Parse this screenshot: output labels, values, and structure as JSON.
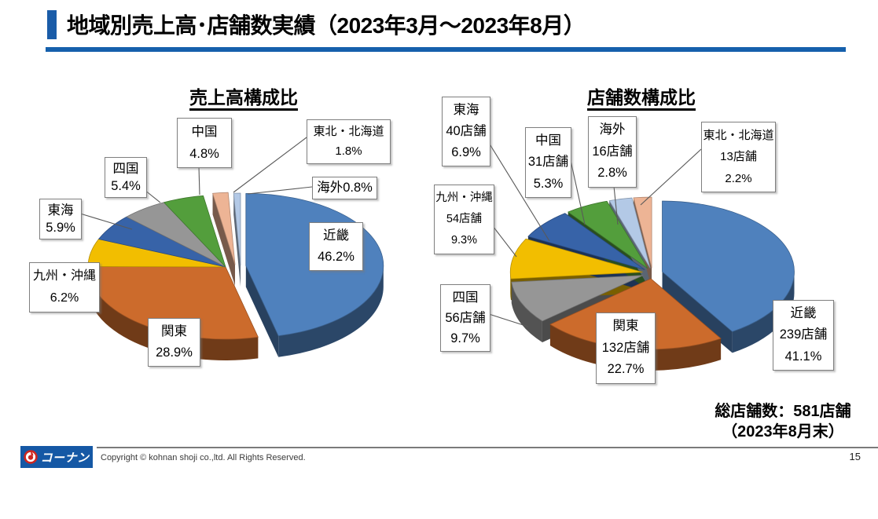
{
  "page": {
    "title": "地域別売上高･店舗数実績（2023年3月～2023年8月）",
    "total_note_line1": "総店舗数：581店舗",
    "total_note_line2": "（2023年8月末）",
    "footer_copyright": "Copyright © kohnan shoji co.,ltd. All Rights Reserved.",
    "logo_text": "コーナン",
    "page_number": "15",
    "accent_blue": "#1560AC",
    "logo_blue": "#1558A5",
    "logo_red": "#CE2620"
  },
  "chart_data": [
    {
      "type": "pie",
      "title": "売上高構成比",
      "value_kind": "percent_of_sales",
      "legend_position": "callouts",
      "slices": [
        {
          "id": "kinki",
          "region": "近畿",
          "pct": 46.2,
          "color": "#4F81BD",
          "label_lines": [
            "近畿",
            "46.2%"
          ]
        },
        {
          "id": "kanto",
          "region": "関東",
          "pct": 28.9,
          "color": "#CC6B2C",
          "label_lines": [
            "関東",
            "28.9%"
          ]
        },
        {
          "id": "kyushu-okinawa",
          "region": "九州・沖縄",
          "pct": 6.2,
          "color": "#F2BE00",
          "label_lines": [
            "九州・沖縄",
            "6.2%"
          ]
        },
        {
          "id": "tokai",
          "region": "東海",
          "pct": 5.9,
          "color": "#3763A8",
          "label_lines": [
            "東海",
            "5.9%"
          ]
        },
        {
          "id": "shikoku",
          "region": "四国",
          "pct": 5.4,
          "color": "#969696",
          "label_lines": [
            "四国",
            "5.4%"
          ]
        },
        {
          "id": "chugoku",
          "region": "中国",
          "pct": 4.8,
          "color": "#539E3C",
          "label_lines": [
            "中国",
            "4.8%"
          ]
        },
        {
          "id": "tohoku-hokkaido",
          "region": "東北・北海道",
          "pct": 1.8,
          "color": "#EDB495",
          "label_lines": [
            "東北・北海道",
            "1.8%"
          ]
        },
        {
          "id": "overseas",
          "region": "海外",
          "pct": 0.8,
          "color": "#B3C9E6",
          "label_lines": [
            "海外0.8%"
          ]
        }
      ]
    },
    {
      "type": "pie",
      "title": "店舗数構成比",
      "value_kind": "store_count",
      "total_stores": 581,
      "legend_position": "callouts",
      "slices": [
        {
          "id": "kinki",
          "region": "近畿",
          "stores": 239,
          "pct": 41.1,
          "color": "#4F81BD",
          "label_lines": [
            "近畿",
            "239店舗",
            "41.1%"
          ]
        },
        {
          "id": "kanto",
          "region": "関東",
          "stores": 132,
          "pct": 22.7,
          "color": "#CC6B2C",
          "label_lines": [
            "関東",
            "132店舗",
            "22.7%"
          ]
        },
        {
          "id": "shikoku",
          "region": "四国",
          "stores": 56,
          "pct": 9.7,
          "color": "#969696",
          "label_lines": [
            "四国",
            "56店舗",
            "9.7%"
          ]
        },
        {
          "id": "kyushu-okinawa",
          "region": "九州・沖縄",
          "stores": 54,
          "pct": 9.3,
          "color": "#F2BE00",
          "label_lines": [
            "九州・沖縄",
            "54店舗",
            "9.3%"
          ]
        },
        {
          "id": "tokai",
          "region": "東海",
          "stores": 40,
          "pct": 6.9,
          "color": "#3763A8",
          "label_lines": [
            "東海",
            "40店舗",
            "6.9%"
          ]
        },
        {
          "id": "chugoku",
          "region": "中国",
          "stores": 31,
          "pct": 5.3,
          "color": "#539E3C",
          "label_lines": [
            "中国",
            "31店舗",
            "5.3%"
          ]
        },
        {
          "id": "overseas",
          "region": "海外",
          "stores": 16,
          "pct": 2.8,
          "color": "#B3C9E6",
          "label_lines": [
            "海外",
            "16店舗",
            "2.8%"
          ]
        },
        {
          "id": "tohoku-hokkaido",
          "region": "東北・北海道",
          "stores": 13,
          "pct": 2.2,
          "color": "#EDB495",
          "label_lines": [
            "東北・北海道",
            "13店舗",
            "2.2%"
          ]
        }
      ]
    }
  ]
}
